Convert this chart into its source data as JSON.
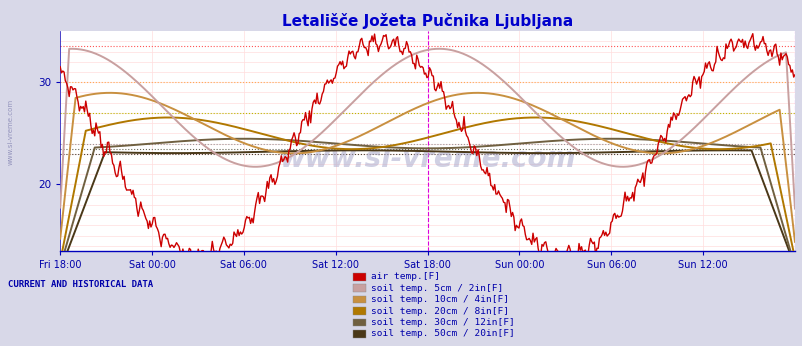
{
  "title": "Letališče Jožeta Pučnika Ljubljana",
  "title_color": "#0000cc",
  "title_fontsize": 11,
  "bg_color": "#d8d8e8",
  "plot_bg_color": "#ffffff",
  "tick_color": "#0000aa",
  "x_ticks_labels": [
    "Fri 18:00",
    "Sat 00:00",
    "Sat 06:00",
    "Sat 12:00",
    "Sat 18:00",
    "Sun 00:00",
    "Sun 06:00",
    "Sun 12:00"
  ],
  "x_ticks_pos": [
    0,
    24,
    48,
    72,
    96,
    120,
    144,
    168
  ],
  "ylim": [
    13.5,
    35.0
  ],
  "xlim": [
    0,
    192
  ],
  "yticks": [
    20,
    30
  ],
  "vline_x": 96,
  "vline_color": "#dd00dd",
  "vline2_x": 192,
  "watermark": "www.si-vreme.com",
  "watermark_color": "#aaaacc",
  "watermark_alpha": 0.55,
  "watermark_fontsize": 20,
  "legend_title": "CURRENT AND HISTORICAL DATA",
  "legend_entries": [
    {
      "label": "air temp.[F]",
      "color": "#cc0000"
    },
    {
      "label": "soil temp. 5cm / 2in[F]",
      "color": "#c8a0a0"
    },
    {
      "label": "soil temp. 10cm / 4in[F]",
      "color": "#c89040"
    },
    {
      "label": "soil temp. 20cm / 8in[F]",
      "color": "#b07800"
    },
    {
      "label": "soil temp. 30cm / 12in[F]",
      "color": "#706040"
    },
    {
      "label": "soil temp. 50cm / 20in[F]",
      "color": "#4a3818"
    }
  ],
  "hgrid_dotted_y": [
    33.5,
    30.0,
    27.0,
    24.0,
    23.5,
    23.0
  ],
  "hgrid_dotted_c": [
    "#ff5555",
    "#ffaa55",
    "#bbbb00",
    "#999999",
    "#666655",
    "#444433"
  ],
  "hgrid_fine_y": [
    14,
    15,
    16,
    17,
    18,
    19,
    20,
    21,
    22,
    23,
    24,
    25,
    26,
    27,
    28,
    29,
    30,
    31,
    32,
    33,
    34
  ],
  "hgrid_fine_c": "#ffdddd",
  "vgrid_c": "#ffdddd"
}
